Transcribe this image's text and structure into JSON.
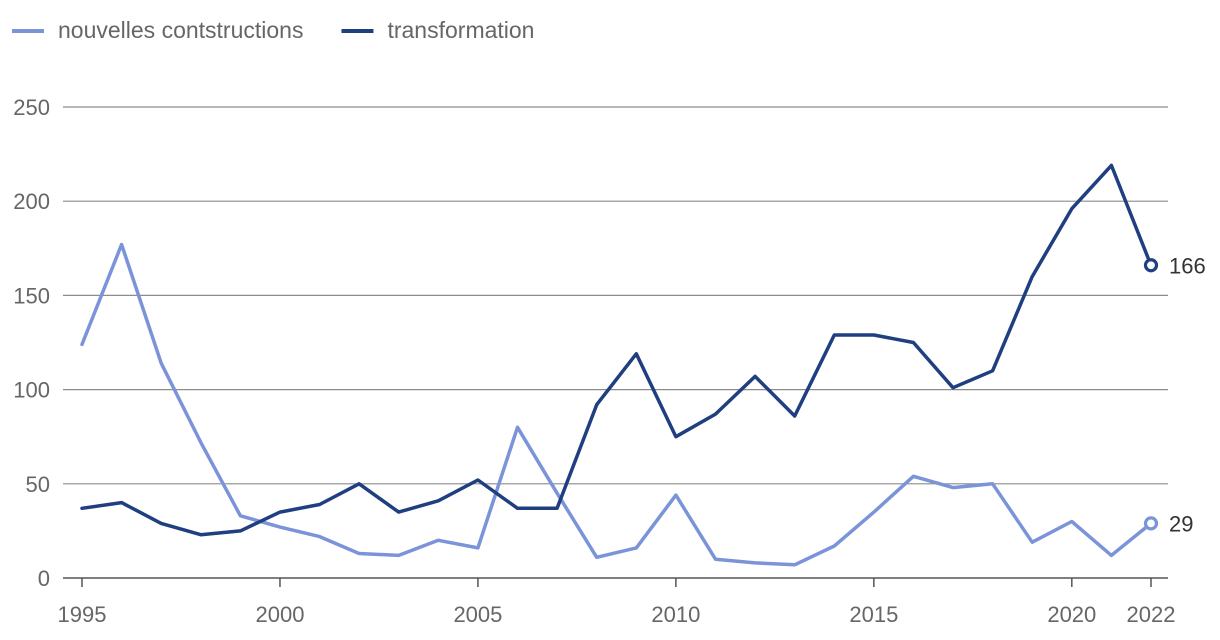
{
  "chart_data": {
    "type": "line",
    "x": [
      1995,
      1996,
      1997,
      1998,
      1999,
      2000,
      2001,
      2002,
      2003,
      2004,
      2005,
      2006,
      2007,
      2008,
      2009,
      2010,
      2011,
      2012,
      2013,
      2014,
      2015,
      2016,
      2017,
      2018,
      2019,
      2020,
      2021,
      2022
    ],
    "series": [
      {
        "name": "nouvelles contstructions",
        "color": "#7B93D9",
        "values": [
          124,
          177,
          114,
          72,
          33,
          27,
          22,
          13,
          12,
          20,
          16,
          80,
          45,
          11,
          16,
          44,
          10,
          8,
          7,
          17,
          35,
          54,
          48,
          50,
          19,
          30,
          12,
          29
        ],
        "end_label": "29"
      },
      {
        "name": "transformation",
        "color": "#1F3F80",
        "values": [
          37,
          40,
          29,
          23,
          25,
          35,
          39,
          50,
          35,
          41,
          52,
          37,
          37,
          92,
          119,
          75,
          87,
          107,
          86,
          129,
          129,
          125,
          101,
          110,
          160,
          196,
          219,
          166
        ],
        "end_label": "166"
      }
    ],
    "xticks": [
      "1995",
      "2000",
      "2005",
      "2010",
      "2015",
      "2020",
      "2022"
    ],
    "yticks": [
      "0",
      "50",
      "100",
      "150",
      "200",
      "250"
    ],
    "ylim": [
      0,
      250
    ],
    "xlim": [
      1995,
      2022
    ],
    "grid": true,
    "legend": "top-left"
  }
}
